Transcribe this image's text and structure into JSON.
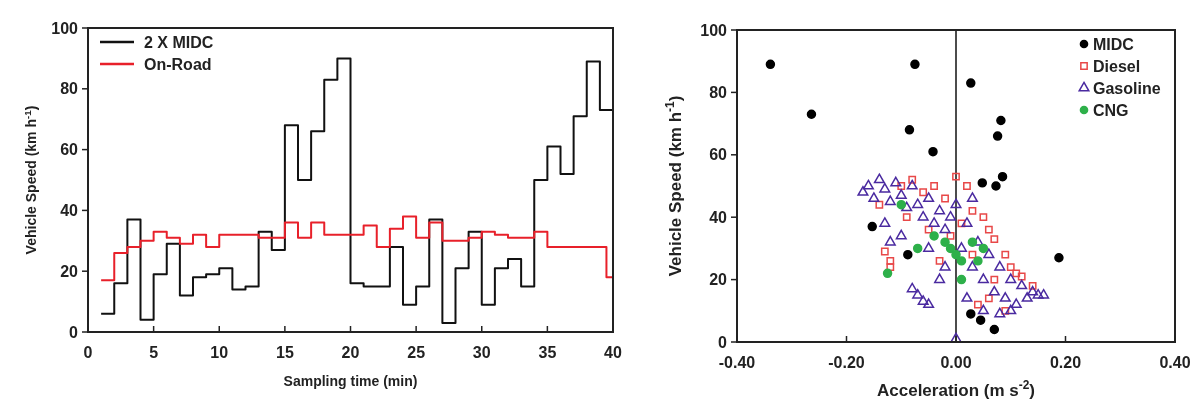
{
  "chart_data": [
    {
      "type": "step",
      "xlabel": "Sampling time (min)",
      "ylabel": "Vehicle Speed (km h$^{-1}$)",
      "xlim": [
        0,
        40
      ],
      "ylim": [
        0,
        100
      ],
      "xticks": [
        0,
        5,
        10,
        15,
        20,
        25,
        30,
        35,
        40
      ],
      "yticks": [
        0,
        20,
        40,
        60,
        80,
        100
      ],
      "legend": "top left",
      "series": [
        {
          "name": "2 X MIDC",
          "color": "#111111",
          "x": [
            1,
            2,
            3,
            4,
            5,
            6,
            7,
            8,
            9,
            10,
            11,
            12,
            13,
            14,
            15,
            16,
            17,
            18,
            19,
            20,
            21,
            22,
            23,
            24,
            25,
            26,
            27,
            28,
            29,
            30,
            31,
            32,
            33,
            34,
            35,
            36,
            37,
            38,
            39,
            40
          ],
          "values": [
            6,
            16,
            37,
            4,
            19,
            29,
            12,
            18,
            19,
            21,
            14,
            15,
            33,
            27,
            68,
            50,
            66,
            83,
            90,
            16,
            15,
            15,
            28,
            9,
            15,
            37,
            3,
            21,
            33,
            9,
            21,
            24,
            15,
            50,
            61,
            52,
            71,
            89,
            73,
            73
          ]
        },
        {
          "name": "On-Road",
          "color": "#e8202a",
          "x": [
            1,
            2,
            3,
            4,
            5,
            6,
            7,
            8,
            9,
            10,
            11,
            12,
            13,
            14,
            15,
            16,
            17,
            18,
            19,
            20,
            21,
            22,
            23,
            24,
            25,
            26,
            27,
            28,
            29,
            30,
            31,
            32,
            33,
            34,
            35,
            36,
            37,
            38,
            39,
            39.5,
            40
          ],
          "values": [
            17,
            26,
            28,
            30,
            33,
            31,
            29,
            32,
            28,
            32,
            32,
            32,
            31,
            31,
            36,
            31,
            36,
            32,
            32,
            32,
            35,
            28,
            34,
            38,
            31,
            36,
            30,
            30,
            31,
            33,
            32,
            31,
            31,
            33,
            28,
            28,
            28,
            28,
            28,
            18,
            18
          ]
        }
      ]
    },
    {
      "type": "scatter",
      "xlabel": "Acceleration (m s$^{-2}$)",
      "ylabel": "Vehicle Speed (km h$^{-1}$)",
      "xlim": [
        -0.4,
        0.4
      ],
      "ylim": [
        0,
        100
      ],
      "xticks": [
        {
          "value": -0.4,
          "label": "-0.40"
        },
        {
          "value": -0.2,
          "label": "-0.20"
        },
        {
          "value": 0,
          "label": "0.00"
        },
        {
          "value": 0.2,
          "label": "0.20"
        },
        {
          "value": 0.4,
          "label": "0.40"
        }
      ],
      "yticks": [
        0,
        20,
        40,
        60,
        80,
        100
      ],
      "legend": "top right",
      "ref_lines": [
        {
          "axis": "x",
          "value": 0,
          "color": "#111111"
        }
      ],
      "series": [
        {
          "name": "MIDC",
          "color": "#000000",
          "marker": "circle",
          "x": [
            -0.339,
            -0.264,
            -0.085,
            -0.075,
            -0.153,
            -0.088,
            0.027,
            -0.042,
            0.082,
            0.076,
            0.048,
            0.073,
            0.085,
            0.188,
            0.027,
            0.045,
            0.07
          ],
          "values": [
            89,
            73,
            68,
            89,
            37,
            28,
            83,
            61,
            71,
            66,
            51,
            50,
            53,
            27,
            9,
            7,
            4
          ]
        },
        {
          "name": "Diesel",
          "color": "#e84848",
          "marker": "square",
          "x": [
            -0.13,
            -0.12,
            -0.12,
            -0.1,
            -0.08,
            -0.06,
            -0.04,
            -0.02,
            0,
            0.02,
            0.03,
            0.05,
            0.06,
            0.07,
            0.09,
            0.1,
            0.11,
            0.12,
            0.09,
            0.06,
            -0.09,
            -0.05,
            -0.01,
            0.03,
            0.07,
            -0.14,
            0.14,
            0.04,
            -0.03,
            0.01
          ],
          "values": [
            29,
            26,
            24,
            50,
            52,
            48,
            50,
            46,
            53,
            50,
            42,
            40,
            36,
            33,
            28,
            24,
            22,
            21,
            10,
            14,
            40,
            36,
            34,
            28,
            20,
            44,
            18,
            12,
            26,
            38
          ]
        },
        {
          "name": "Gasoline",
          "color": "#4a2aa0",
          "marker": "triangle",
          "x": [
            -0.17,
            -0.16,
            -0.15,
            -0.14,
            -0.13,
            -0.12,
            -0.11,
            -0.1,
            -0.09,
            -0.08,
            -0.07,
            -0.06,
            -0.05,
            -0.04,
            -0.03,
            -0.02,
            -0.01,
            0,
            0.01,
            0.02,
            0.03,
            0.04,
            0.05,
            0.06,
            0.07,
            0.08,
            0.09,
            0.1,
            0.11,
            0.12,
            0.13,
            0.14,
            0.15,
            0.16,
            0.1,
            0.05,
            0.02,
            -0.02,
            -0.05,
            -0.1,
            -0.12,
            -0.08,
            -0.07,
            -0.06,
            -0.05,
            0,
            -0.03,
            0.03,
            -0.13,
            0.08
          ],
          "values": [
            48,
            50,
            46,
            52,
            49,
            45,
            51,
            47,
            43,
            50,
            44,
            40,
            46,
            38,
            42,
            36,
            40,
            44,
            30,
            38,
            24,
            32,
            20,
            28,
            16,
            24,
            14,
            20,
            12,
            18,
            14,
            16,
            15,
            15,
            10,
            10,
            14,
            24,
            30,
            34,
            32,
            17,
            15,
            13,
            12,
            1,
            20,
            46,
            38,
            9
          ]
        },
        {
          "name": "CNG",
          "color": "#2eb04a",
          "marker": "circle",
          "x": [
            -0.125,
            -0.1,
            -0.04,
            -0.02,
            -0.01,
            0,
            0.01,
            0.04,
            0.01,
            0.03,
            -0.07,
            0.05
          ],
          "values": [
            22,
            44,
            34,
            32,
            30,
            28,
            26,
            26,
            20,
            32,
            30,
            30
          ]
        }
      ]
    }
  ]
}
